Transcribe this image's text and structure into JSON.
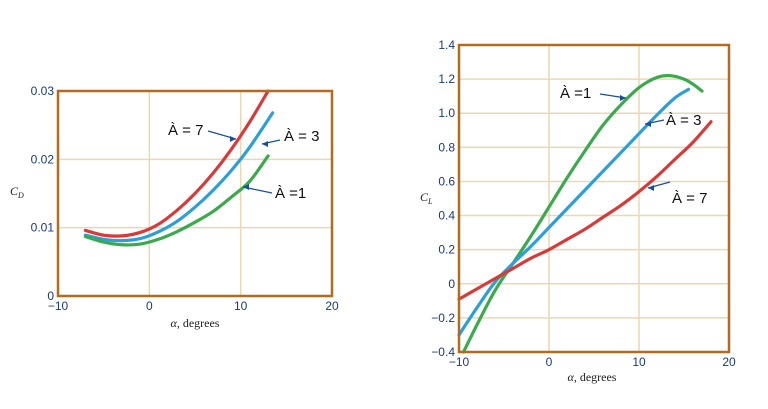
{
  "chart_data": [
    {
      "type": "line",
      "xlabel_symbol": "α",
      "xlabel_text": ", degrees",
      "ylabel_main": "C",
      "ylabel_sub": "D",
      "xlim": [
        -10,
        20
      ],
      "ylim": [
        0,
        0.03
      ],
      "xticks": [
        -10,
        0,
        10,
        20
      ],
      "yticks": [
        0,
        0.01,
        0.02,
        0.03
      ],
      "ytick_labels": [
        "0",
        "0.01",
        "0.02",
        "0.03"
      ],
      "xtick_labels": [
        "−10",
        "0",
        "10",
        "20"
      ],
      "grid": true,
      "series": [
        {
          "name": "À = 7",
          "color": "#d83a3a",
          "x": [
            -7,
            -5,
            -3,
            -1,
            1,
            3,
            5,
            7,
            9,
            11,
            13
          ],
          "y": [
            0.0096,
            0.0089,
            0.0088,
            0.0093,
            0.0105,
            0.0125,
            0.015,
            0.018,
            0.0215,
            0.0255,
            0.03
          ]
        },
        {
          "name": "À = 3",
          "color": "#2b9fd8",
          "x": [
            -7,
            -5,
            -3,
            -1,
            1,
            3,
            5,
            7,
            9,
            11,
            13.5
          ],
          "y": [
            0.0089,
            0.0083,
            0.0081,
            0.0084,
            0.0094,
            0.0109,
            0.013,
            0.0155,
            0.0184,
            0.0218,
            0.0268
          ]
        },
        {
          "name": "À =1",
          "color": "#3aaa4c",
          "x": [
            -7,
            -5,
            -3,
            -1,
            1,
            3,
            5,
            7,
            9,
            11,
            13
          ],
          "y": [
            0.0087,
            0.0079,
            0.0075,
            0.0076,
            0.0083,
            0.0094,
            0.0108,
            0.0124,
            0.0145,
            0.0168,
            0.0205
          ]
        }
      ]
    },
    {
      "type": "line",
      "xlabel_symbol": "α",
      "xlabel_text": ", degrees",
      "ylabel_main": "C",
      "ylabel_sub": "L",
      "xlim": [
        -10,
        20
      ],
      "ylim": [
        -0.4,
        1.4
      ],
      "xticks": [
        -10,
        0,
        10,
        20
      ],
      "yticks": [
        -0.4,
        -0.2,
        0,
        0.2,
        0.4,
        0.6,
        0.8,
        1.0,
        1.2,
        1.4
      ],
      "ytick_labels": [
        "−0.4",
        "−0.2",
        "0",
        "0.2",
        "0.4",
        "0.6",
        "0.8",
        "1.0",
        "1.2",
        "1.4"
      ],
      "xtick_labels": [
        "−10",
        "0",
        "10",
        "20"
      ],
      "grid": true,
      "series": [
        {
          "name": "À =1",
          "color": "#3aaa4c",
          "x": [
            -9.5,
            -8,
            -6,
            -4,
            -2,
            0,
            2,
            4,
            6,
            8,
            10,
            12,
            13.5,
            15,
            16,
            17
          ],
          "y": [
            -0.4,
            -0.24,
            -0.04,
            0.12,
            0.28,
            0.45,
            0.62,
            0.78,
            0.93,
            1.05,
            1.15,
            1.21,
            1.22,
            1.2,
            1.17,
            1.13
          ]
        },
        {
          "name": "À = 3",
          "color": "#2b9fd8",
          "x": [
            -10,
            -8,
            -6,
            -4,
            -2,
            0,
            2,
            4,
            6,
            8,
            10,
            12,
            14,
            15.5
          ],
          "y": [
            -0.3,
            -0.14,
            0.01,
            0.12,
            0.22,
            0.33,
            0.44,
            0.55,
            0.66,
            0.77,
            0.88,
            0.99,
            1.09,
            1.14
          ]
        },
        {
          "name": "À = 7",
          "color": "#d83a3a",
          "x": [
            -10,
            -8,
            -6,
            -4,
            -2,
            0,
            2,
            4,
            6,
            8,
            10,
            12,
            14,
            16,
            18
          ],
          "y": [
            -0.09,
            -0.03,
            0.03,
            0.09,
            0.15,
            0.2,
            0.26,
            0.32,
            0.39,
            0.46,
            0.54,
            0.63,
            0.73,
            0.83,
            0.95
          ]
        }
      ]
    }
  ]
}
